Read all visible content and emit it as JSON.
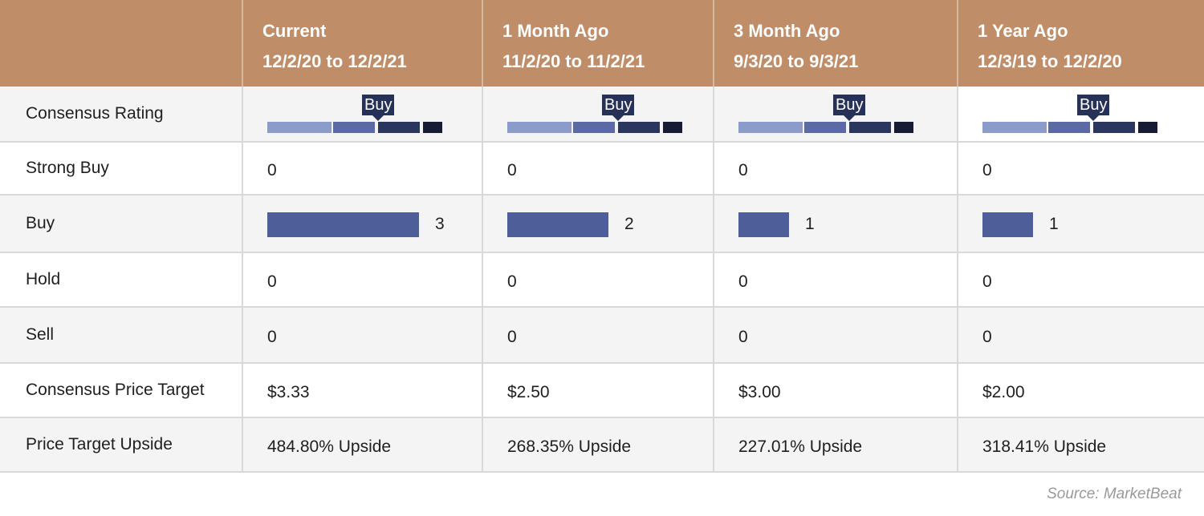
{
  "chart_data": {
    "type": "table",
    "columns": [
      {
        "title": "Current",
        "range": "12/2/20 to 12/2/21",
        "rating": "Buy",
        "strong_buy": "0",
        "buy": "3",
        "hold": "0",
        "sell": "0",
        "price_target": "$3.33",
        "upside": "484.80% Upside"
      },
      {
        "title": "1 Month Ago",
        "range": "11/2/20 to 11/2/21",
        "rating": "Buy",
        "strong_buy": "0",
        "buy": "2",
        "hold": "0",
        "sell": "0",
        "price_target": "$2.50",
        "upside": "268.35% Upside"
      },
      {
        "title": "3 Month Ago",
        "range": "9/3/20 to 9/3/21",
        "rating": "Buy",
        "strong_buy": "0",
        "buy": "1",
        "hold": "0",
        "sell": "0",
        "price_target": "$3.00",
        "upside": "227.01% Upside"
      },
      {
        "title": "1 Year Ago",
        "range": "12/3/19 to 12/2/20",
        "rating": "Buy",
        "strong_buy": "0",
        "buy": "1",
        "hold": "0",
        "sell": "0",
        "price_target": "$2.00",
        "upside": "318.41% Upside"
      }
    ],
    "row_labels": {
      "rating": "Consensus Rating",
      "strong_buy": "Strong Buy",
      "buy": "Buy",
      "hold": "Hold",
      "sell": "Sell",
      "price_target": "Consensus Price Target",
      "upside": "Price Target Upside"
    },
    "source": "Source: MarketBeat"
  },
  "colors": {
    "header_bg": "#bf8d68",
    "buy_bar": "#4e5e99",
    "rating_segments": [
      "#8c9cca",
      "#5b6aa3",
      "#2b365e",
      "#161c34"
    ]
  }
}
